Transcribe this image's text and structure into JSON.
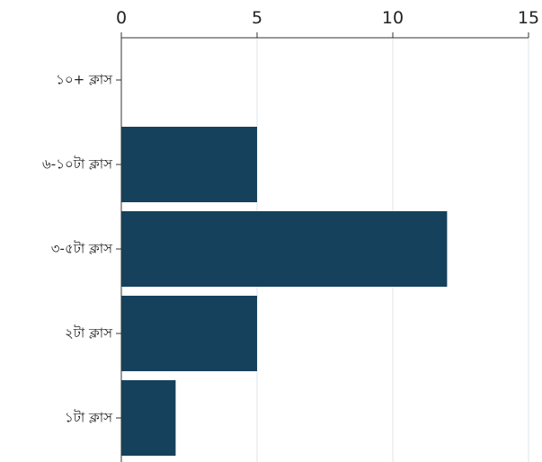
{
  "chart_data": {
    "type": "bar",
    "orientation": "horizontal",
    "categories": [
      "১০+ ক্লাস",
      "৬-১০টা ক্লাস",
      "৩-৫টা ক্লাস",
      "২টা ক্লাস",
      "১টা ক্লাস"
    ],
    "values": [
      0,
      5,
      12,
      5,
      2
    ],
    "xlim": [
      0,
      15
    ],
    "x_ticks": [
      0,
      5,
      10,
      15
    ],
    "axis_position": "top",
    "grid": true,
    "bar_color": "#15415c",
    "grid_color": "#dfe6ea",
    "axis_color": "#333333",
    "title": "",
    "xlabel": "",
    "ylabel": ""
  }
}
